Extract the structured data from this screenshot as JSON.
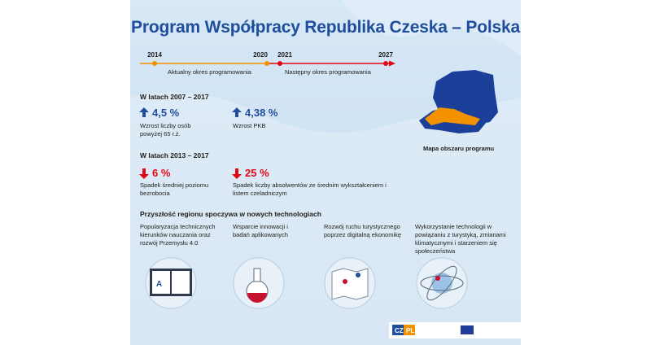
{
  "title": "Program Współpracy Republika Czeska – Polska",
  "timeline": {
    "years": [
      "2014",
      "2020",
      "2021",
      "2027"
    ],
    "current_period": "Aktualny okres programowania",
    "next_period": "Następny okres programowania"
  },
  "stats": [
    {
      "heading": "W latach 2007 – 2017",
      "items": [
        {
          "value": "4,5 %",
          "label": "Wzrost liczby osób powyżej 65 r.ż."
        },
        {
          "value": "4,38 %",
          "label": "Wzrost PKB"
        }
      ]
    },
    {
      "heading": "W latach 2013 – 2017",
      "items": [
        {
          "value": "6 %",
          "label": "Spadek średniej poziomu bezrobocia"
        },
        {
          "value": "25 %",
          "label": "Spadek liczby absolwentów ze średnim wykształceniem i listem czeladniczym"
        }
      ]
    }
  ],
  "map_caption": "Mapa obszaru programu",
  "future": {
    "heading": "Przyszłość regionu spoczywa w nowych technologiach",
    "items": [
      "Popularyzacja technicznych kierunków nauczania oraz rozwój Przemysłu 4.0",
      "Wsparcie innowacji i badań aplikowanych",
      "Rozwój ruchu turystycznego poprzez digitalną ekonomikę",
      "Wykorzystanie technologii w powiązaniu z turystyką, zmianami klimatycznymi i starzeniem się społeczeństwa"
    ]
  },
  "footer": {
    "logo_cz": "CZ",
    "logo_pl": "PL"
  }
}
